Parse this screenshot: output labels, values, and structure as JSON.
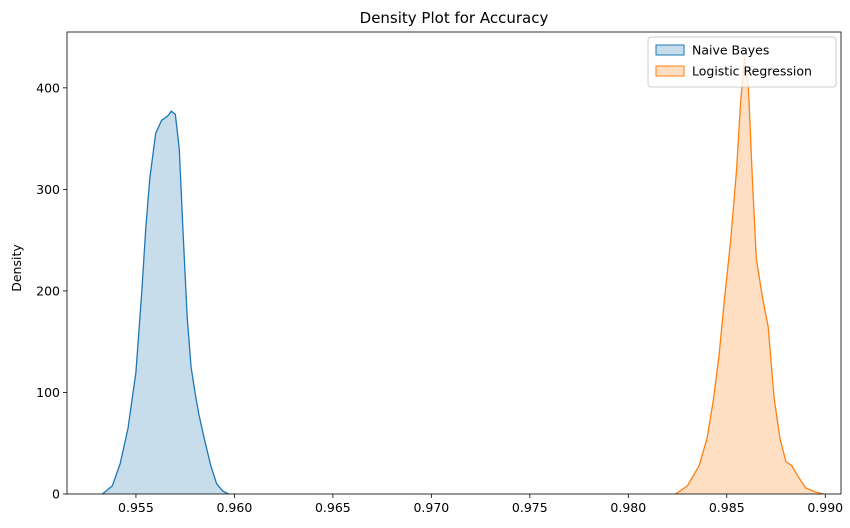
{
  "chart_data": {
    "type": "area",
    "title": "Density Plot for Accuracy",
    "xlabel": "",
    "ylabel": "Density",
    "xlim": [
      0.9515,
      0.9908
    ],
    "ylim": [
      0,
      455
    ],
    "xticks": [
      "0.955",
      "0.960",
      "0.965",
      "0.970",
      "0.975",
      "0.980",
      "0.985",
      "0.990"
    ],
    "xtick_values": [
      0.955,
      0.96,
      0.965,
      0.97,
      0.975,
      0.98,
      0.985,
      0.99
    ],
    "yticks": [
      "0",
      "100",
      "200",
      "300",
      "400"
    ],
    "ytick_values": [
      0,
      100,
      200,
      300,
      400
    ],
    "grid": false,
    "legend_position": "top-right",
    "series": [
      {
        "name": "Naive Bayes",
        "color": "#1f77b4",
        "x": [
          0.9533,
          0.9538,
          0.9542,
          0.9546,
          0.955,
          0.9553,
          0.9555,
          0.9557,
          0.956,
          0.9563,
          0.9566,
          0.9568,
          0.957,
          0.9572,
          0.9574,
          0.9576,
          0.9578,
          0.958,
          0.9582,
          0.9585,
          0.9588,
          0.9591,
          0.9594,
          0.9597
        ],
        "values": [
          0,
          8,
          30,
          65,
          120,
          200,
          262,
          310,
          355,
          368,
          372,
          377,
          374,
          340,
          255,
          175,
          125,
          100,
          78,
          52,
          28,
          10,
          3,
          0
        ]
      },
      {
        "name": "Logistic Regression",
        "color": "#ff7f0e",
        "x": [
          0.9824,
          0.983,
          0.9836,
          0.984,
          0.9843,
          0.9846,
          0.9849,
          0.9852,
          0.9855,
          0.9857,
          0.9859,
          0.9861,
          0.9863,
          0.9865,
          0.9868,
          0.9871,
          0.9874,
          0.9877,
          0.988,
          0.9883,
          0.9886,
          0.989,
          0.9895,
          0.9899
        ],
        "values": [
          0,
          8,
          28,
          55,
          90,
          135,
          195,
          250,
          320,
          385,
          430,
          400,
          310,
          232,
          195,
          165,
          95,
          55,
          32,
          28,
          18,
          6,
          2,
          0
        ]
      }
    ]
  }
}
